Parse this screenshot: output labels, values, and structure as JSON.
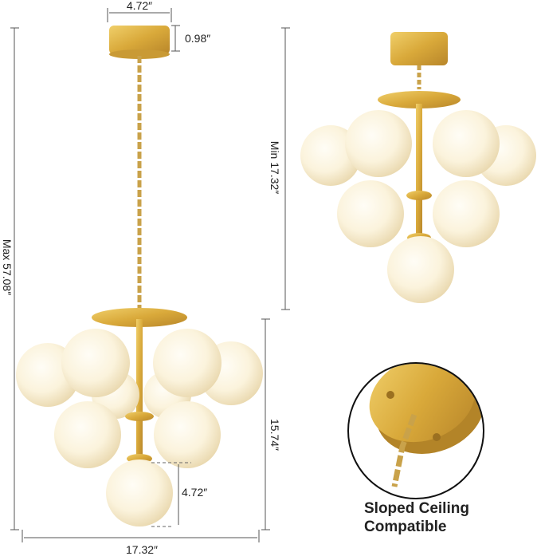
{
  "dimensions": {
    "canopy_width": "4.72″",
    "canopy_height": "0.98″",
    "max_height": "Max 57.08″",
    "min_height": "Min  17.32″",
    "fixture_height": "15.74″",
    "globe_diameter": "4.72″",
    "fixture_width": "17.32″"
  },
  "caption": {
    "line1": "Sloped Ceiling",
    "line2": "Compatible"
  }
}
